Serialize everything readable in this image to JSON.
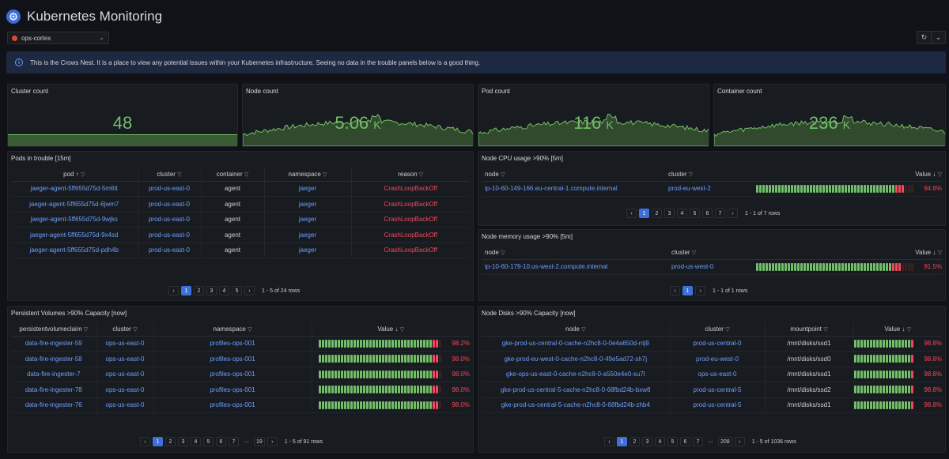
{
  "header": {
    "title": "Kubernetes Monitoring",
    "datasource": "ops-cortex"
  },
  "banner": {
    "text": "This is the Crows Nest. It is a place to view any potential issues within your Kubernetes infrastructure. Seeing no data in the trouble panels below is a good thing."
  },
  "stats": [
    {
      "title": "Cluster count",
      "value": "48",
      "unit": ""
    },
    {
      "title": "Node count",
      "value": "5.06",
      "unit": "K"
    },
    {
      "title": "Pod count",
      "value": "116",
      "unit": "K"
    },
    {
      "title": "Container count",
      "value": "236",
      "unit": "K"
    }
  ],
  "colors": {
    "green": "#73bf69",
    "red": "#f2495c",
    "link": "#6e9fff",
    "accent": "#3d71d9"
  },
  "pods": {
    "title": "Pods in trouble [15m]",
    "headers": [
      "pod",
      "cluster",
      "container",
      "namespace",
      "reason"
    ],
    "rows": [
      [
        "jaeger-agent-5ff655d75d-5m6tt",
        "prod-us-east-0",
        "agent",
        "jaeger",
        "CrashLoopBackOff"
      ],
      [
        "jaeger-agent-5ff655d75d-6jwm7",
        "prod-us-east-0",
        "agent",
        "jaeger",
        "CrashLoopBackOff"
      ],
      [
        "jaeger-agent-5ff655d75d-9wjks",
        "prod-us-east-0",
        "agent",
        "jaeger",
        "CrashLoopBackOff"
      ],
      [
        "jaeger-agent-5ff655d75d-9x4sd",
        "prod-us-east-0",
        "agent",
        "jaeger",
        "CrashLoopBackOff"
      ],
      [
        "jaeger-agent-5ff655d75d-pdh4b",
        "prod-us-east-0",
        "agent",
        "jaeger",
        "CrashLoopBackOff"
      ]
    ],
    "pages": [
      "1",
      "2",
      "3",
      "4",
      "5"
    ],
    "info": "1 - 5 of 24 rows"
  },
  "cpu": {
    "title": "Node CPU usage >90% [5m]",
    "headers": [
      "node",
      "cluster",
      "Value"
    ],
    "rows": [
      {
        "node": "ip-10-60-149-166.eu-central-1.compute.internal",
        "cluster": "prod-eu-west-2",
        "value": "94.6%",
        "level": 0.946
      }
    ],
    "pages": [
      "1",
      "2",
      "3",
      "4",
      "5",
      "6",
      "7"
    ],
    "info": "1 - 1 of 7 rows"
  },
  "mem": {
    "title": "Node memory usage >90% [5m]",
    "headers": [
      "node",
      "cluster",
      "Value"
    ],
    "rows": [
      {
        "node": "ip-10-60-179-10.us-west-2.compute.internal",
        "cluster": "prod-us-west-0",
        "value": "91.5%",
        "level": 0.915
      }
    ],
    "pages": [
      "1"
    ],
    "info": "1 - 1 of 1 rows"
  },
  "pv": {
    "title": "Persistent Volumes >90% Capacity [now]",
    "headers": [
      "persistentvolumeclaim",
      "cluster",
      "namespace",
      "Value"
    ],
    "rows": [
      {
        "pvc": "data-fire-ingester-59",
        "cluster": "ops-us-east-0",
        "ns": "profiles-ops-001",
        "value": "98.2%",
        "level": 0.982
      },
      {
        "pvc": "data-fire-ingester-58",
        "cluster": "ops-us-east-0",
        "ns": "profiles-ops-001",
        "value": "98.0%",
        "level": 0.98
      },
      {
        "pvc": "data-fire-ingester-7",
        "cluster": "ops-us-east-0",
        "ns": "profiles-ops-001",
        "value": "98.0%",
        "level": 0.98
      },
      {
        "pvc": "data-fire-ingester-78",
        "cluster": "ops-us-east-0",
        "ns": "profiles-ops-001",
        "value": "98.0%",
        "level": 0.98
      },
      {
        "pvc": "data-fire-ingester-76",
        "cluster": "ops-us-east-0",
        "ns": "profiles-ops-001",
        "value": "98.0%",
        "level": 0.98
      }
    ],
    "pages": [
      "1",
      "2",
      "3",
      "4",
      "5",
      "6",
      "7",
      "···",
      "19"
    ],
    "info": "1 - 5 of 91 rows"
  },
  "disks": {
    "title": "Node Disks >90% Capacity [now]",
    "headers": [
      "node",
      "cluster",
      "mountpoint",
      "Value"
    ],
    "rows": [
      {
        "node": "gke-prod-us-central-0-cache-n2hc8-0-0e4a650d-ntj9",
        "cluster": "prod-us-central-0",
        "mp": "/mnt/disks/ssd1",
        "value": "98.8%",
        "level": 0.988
      },
      {
        "node": "gke-prod-eu-west-0-cache-n2hc8-0-49e5ad72-sh7j",
        "cluster": "prod-eu-west-0",
        "mp": "/mnt/disks/ssd0",
        "value": "98.8%",
        "level": 0.988
      },
      {
        "node": "gke-ops-us-east-0-cache-n2hc8-0-a550e4e0-su7l",
        "cluster": "ops-us-east-0",
        "mp": "/mnt/disks/ssd1",
        "value": "98.8%",
        "level": 0.988
      },
      {
        "node": "gke-prod-us-central-5-cache-n2hc8-0-68fbd24b-bxw8",
        "cluster": "prod-us-central-5",
        "mp": "/mnt/disks/ssd2",
        "value": "98.8%",
        "level": 0.988
      },
      {
        "node": "gke-prod-us-central-5-cache-n2hc8-0-68fbd24b-zhb4",
        "cluster": "prod-us-central-5",
        "mp": "/mnt/disks/ssd1",
        "value": "98.8%",
        "level": 0.988
      }
    ],
    "pages": [
      "1",
      "2",
      "3",
      "4",
      "5",
      "6",
      "7",
      "···",
      "208"
    ],
    "info": "1 - 5 of 1036 rows"
  }
}
